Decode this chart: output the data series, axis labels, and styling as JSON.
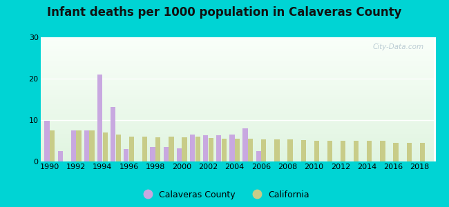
{
  "title": "Infant deaths per 1000 population in Calaveras County",
  "years": [
    1990,
    1991,
    1992,
    1993,
    1994,
    1995,
    1996,
    1997,
    1998,
    1999,
    2000,
    2001,
    2002,
    2003,
    2004,
    2005,
    2006,
    2007,
    2008,
    2009,
    2010,
    2011,
    2012,
    2013,
    2014,
    2015,
    2016,
    2017,
    2018
  ],
  "calaveras": [
    9.8,
    2.5,
    7.5,
    7.5,
    21.0,
    13.2,
    3.0,
    0,
    3.5,
    3.5,
    3.2,
    6.5,
    6.3,
    6.3,
    6.5,
    8.0,
    2.5,
    0,
    0,
    0,
    0,
    0,
    0,
    0,
    0,
    0,
    0,
    0,
    0
  ],
  "california": [
    7.5,
    0,
    7.5,
    7.5,
    7.0,
    6.5,
    6.0,
    6.0,
    5.8,
    6.0,
    5.8,
    6.0,
    5.7,
    5.5,
    5.5,
    5.5,
    5.3,
    5.3,
    5.3,
    5.2,
    5.0,
    5.0,
    5.0,
    5.0,
    5.0,
    5.0,
    4.5,
    4.5,
    4.5
  ],
  "calaveras_color": "#c8a8e0",
  "california_color": "#c8cc88",
  "ylim": [
    0,
    30
  ],
  "yticks": [
    0,
    10,
    20,
    30
  ],
  "bg_outer": "#00d4d4",
  "title_fontsize": 12,
  "watermark": "City-Data.com"
}
